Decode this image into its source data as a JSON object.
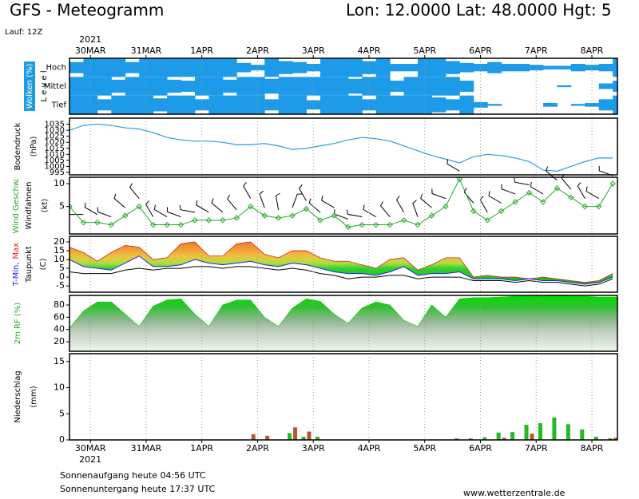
{
  "header": {
    "title": "GFS - Meteogramm",
    "location": "Lon: 12.0000 Lat: 48.0000 Hgt: 5",
    "run": "Lauf: 12Z"
  },
  "time_axis": {
    "year": "2021",
    "xlim": [
      0,
      236
    ],
    "x": [
      0,
      6,
      12,
      18,
      24,
      30,
      36,
      42,
      48,
      54,
      60,
      66,
      72,
      78,
      84,
      90,
      96,
      102,
      108,
      114,
      120,
      126,
      132,
      138,
      144,
      150,
      156,
      162,
      168,
      174,
      180,
      186,
      192,
      198,
      204,
      210,
      216,
      222,
      228,
      234
    ],
    "xticks": [
      {
        "value": 9,
        "label": "30MAR"
      },
      {
        "value": 33,
        "label": "31MAR"
      },
      {
        "value": 57,
        "label": "1APR"
      },
      {
        "value": 81,
        "label": "2APR"
      },
      {
        "value": 105,
        "label": "3APR"
      },
      {
        "value": 129,
        "label": "4APR"
      },
      {
        "value": 153,
        "label": "5APR"
      },
      {
        "value": 177,
        "label": "6APR"
      },
      {
        "value": 201,
        "label": "7APR"
      },
      {
        "value": 225,
        "label": "8APR"
      }
    ]
  },
  "chart_data": [
    {
      "type": "cloud",
      "ylabel": "Wolken (%)",
      "ylabel2": "L e v e l",
      "levels": [
        "Hoch",
        "Mittel",
        "Tief"
      ],
      "color": "#1e9be8",
      "ylim": [
        0,
        100
      ],
      "series": [
        {
          "color": "#1e9be8",
          "values": [
            60,
            100,
            100,
            100,
            60,
            100,
            100,
            100,
            100,
            100,
            100,
            100,
            50,
            30,
            100,
            70,
            60,
            40,
            100,
            100,
            100,
            70,
            100,
            40,
            40,
            100,
            100,
            70,
            50,
            40,
            60,
            40,
            40,
            30,
            20,
            20,
            40,
            30,
            40,
            100
          ]
        },
        {
          "color": "#1e9be8",
          "values": [
            100,
            100,
            100,
            70,
            100,
            100,
            100,
            70,
            60,
            100,
            100,
            70,
            100,
            100,
            80,
            100,
            100,
            100,
            100,
            100,
            80,
            100,
            100,
            60,
            100,
            100,
            100,
            100,
            60,
            0,
            0,
            0,
            0,
            0,
            0,
            10,
            0,
            0,
            30,
            60
          ]
        },
        {
          "color": "#1e9be8",
          "values": [
            100,
            100,
            60,
            100,
            100,
            100,
            70,
            100,
            100,
            60,
            100,
            100,
            100,
            100,
            60,
            100,
            100,
            50,
            100,
            100,
            100,
            60,
            100,
            100,
            100,
            100,
            80,
            60,
            100,
            30,
            10,
            0,
            0,
            0,
            20,
            0,
            10,
            20,
            60,
            100
          ]
        }
      ]
    },
    {
      "type": "line",
      "ylabel": "Bodendruck",
      "unit": "(hPa)",
      "ylim": [
        993,
        1040
      ],
      "yticks": [
        995,
        1000,
        1005,
        1010,
        1015,
        1020,
        1025,
        1030,
        1035
      ],
      "series": [
        {
          "color": "#2a9fd6",
          "values": [
            1030,
            1034,
            1035,
            1034,
            1032,
            1031,
            1028,
            1024,
            1022,
            1021,
            1021,
            1020,
            1018,
            1018,
            1019,
            1017,
            1014,
            1015,
            1017,
            1019,
            1022,
            1024,
            1023,
            1021,
            1017,
            1013,
            1009,
            1006,
            1003,
            1008,
            1010,
            1009,
            1007,
            1004,
            997,
            996,
            1000,
            1004,
            1007,
            1007
          ]
        }
      ]
    },
    {
      "type": "wind",
      "ylabel": "Wind Geschw.",
      "ylabel2": "Windfahnen",
      "unit": "(kt)",
      "ylim": [
        -1,
        11.4
      ],
      "yticks": [
        5,
        10
      ],
      "barb_color": "#000000",
      "series": [
        {
          "color": "#22aa22",
          "values": [
            5,
            1.5,
            1.5,
            1,
            3,
            5,
            1,
            1,
            1,
            2,
            2,
            2,
            2.5,
            5,
            3,
            2.5,
            3,
            4.5,
            2,
            3,
            0.5,
            1,
            1,
            1,
            2,
            1,
            3,
            5,
            11,
            4,
            2,
            4,
            6,
            8,
            6,
            9,
            7,
            5,
            5,
            10
          ]
        }
      ],
      "wind_direction": [
        250,
        270,
        300,
        290,
        310,
        320,
        330,
        300,
        290,
        280,
        300,
        310,
        320,
        330,
        340,
        350,
        20,
        330,
        310,
        300,
        290,
        280,
        300,
        320,
        330,
        340,
        310,
        290,
        300,
        320,
        330,
        300,
        290,
        280,
        300,
        310,
        320,
        330,
        300,
        290
      ]
    },
    {
      "type": "temperature",
      "ylabel_parts": [
        {
          "text": "T-Min,",
          "color": "#2020e0"
        },
        {
          "text": "Max",
          "color": "#e02020"
        }
      ],
      "ylabel2": "Taupunkt",
      "unit": "(C)",
      "ylim": [
        -8.6,
        23.2
      ],
      "yticks": [
        -5,
        0,
        5,
        10,
        15,
        20
      ],
      "series": [
        {
          "color": "#2020e0",
          "values": [
            10,
            6,
            5,
            4,
            8,
            12,
            6,
            6,
            7,
            10,
            8,
            7,
            8,
            9,
            7,
            6,
            8,
            7,
            5,
            3,
            2,
            2,
            1,
            3,
            6,
            1,
            2,
            2,
            3,
            -1,
            -1,
            -1,
            -2,
            -1,
            -2,
            -2,
            -3,
            -4,
            -3,
            0
          ]
        },
        {
          "color": "#e02020",
          "values": [
            17,
            14,
            9,
            14,
            18,
            17,
            10,
            11,
            19,
            20,
            12,
            12,
            19,
            20,
            13,
            11,
            15,
            15,
            11,
            9,
            9,
            7,
            5,
            10,
            11,
            4,
            7,
            11,
            11,
            0,
            1,
            0,
            0,
            -1,
            0,
            -1,
            -2,
            -3,
            -2,
            2
          ]
        },
        {
          "color": "#000000",
          "values": [
            3,
            2,
            2,
            2,
            4,
            5,
            4,
            5,
            5,
            6,
            6,
            5,
            6,
            6,
            5,
            4,
            5,
            4,
            2,
            1,
            -1,
            0,
            0,
            1,
            1,
            -1,
            0,
            0,
            0,
            -2,
            -2,
            -2,
            -3,
            -2,
            -3,
            -3,
            -4,
            -5,
            -4,
            -1
          ]
        }
      ]
    },
    {
      "type": "area",
      "ylabel": "2m RF (%)",
      "ylabel_color": "#22aa22",
      "ylim": [
        4.4,
        95.6
      ],
      "yticks": [
        20,
        40,
        60,
        80
      ],
      "series": [
        {
          "color": "#00cc00",
          "values": [
            42,
            70,
            85,
            85,
            65,
            45,
            78,
            88,
            90,
            65,
            45,
            80,
            88,
            88,
            60,
            45,
            75,
            90,
            86,
            65,
            50,
            75,
            85,
            80,
            55,
            45,
            80,
            60,
            90,
            92,
            92,
            93,
            94,
            94,
            94,
            95,
            94,
            94,
            93,
            93
          ]
        }
      ]
    },
    {
      "type": "bar",
      "ylabel": "Niederschlag",
      "unit": "(mm)",
      "ylim": [
        0,
        16.5
      ],
      "yticks": [
        0,
        5,
        10,
        15
      ],
      "series": [
        {
          "color": "#22bb22",
          "values": [
            0,
            0,
            0,
            0,
            0,
            0,
            0,
            0,
            0,
            0,
            0,
            0,
            0,
            0,
            0,
            0,
            1.3,
            0.6,
            0.6,
            0,
            0,
            0,
            0,
            0,
            0,
            0,
            0,
            0,
            0.3,
            0.3,
            0.5,
            1.4,
            1.5,
            2.9,
            3.2,
            4.3,
            3,
            2,
            0.6,
            0.3
          ]
        },
        {
          "color": "#b05a30",
          "values": [
            0,
            0,
            0,
            0,
            0,
            0,
            0,
            0,
            0,
            0,
            0,
            0,
            0,
            1.1,
            0.8,
            0,
            2.4,
            1.6,
            0,
            0,
            0,
            0,
            0,
            0,
            0,
            0,
            0,
            0,
            0,
            0,
            0,
            0.4,
            0,
            1.2,
            0,
            0,
            0,
            0,
            0,
            0.4
          ]
        }
      ]
    }
  ],
  "footer": {
    "sunrise": "Sonnenaufgang heute 04:56 UTC",
    "sunset": "Sonnenuntergang heute 17:37 UTC",
    "site": "www.wetterzentrale.de"
  }
}
